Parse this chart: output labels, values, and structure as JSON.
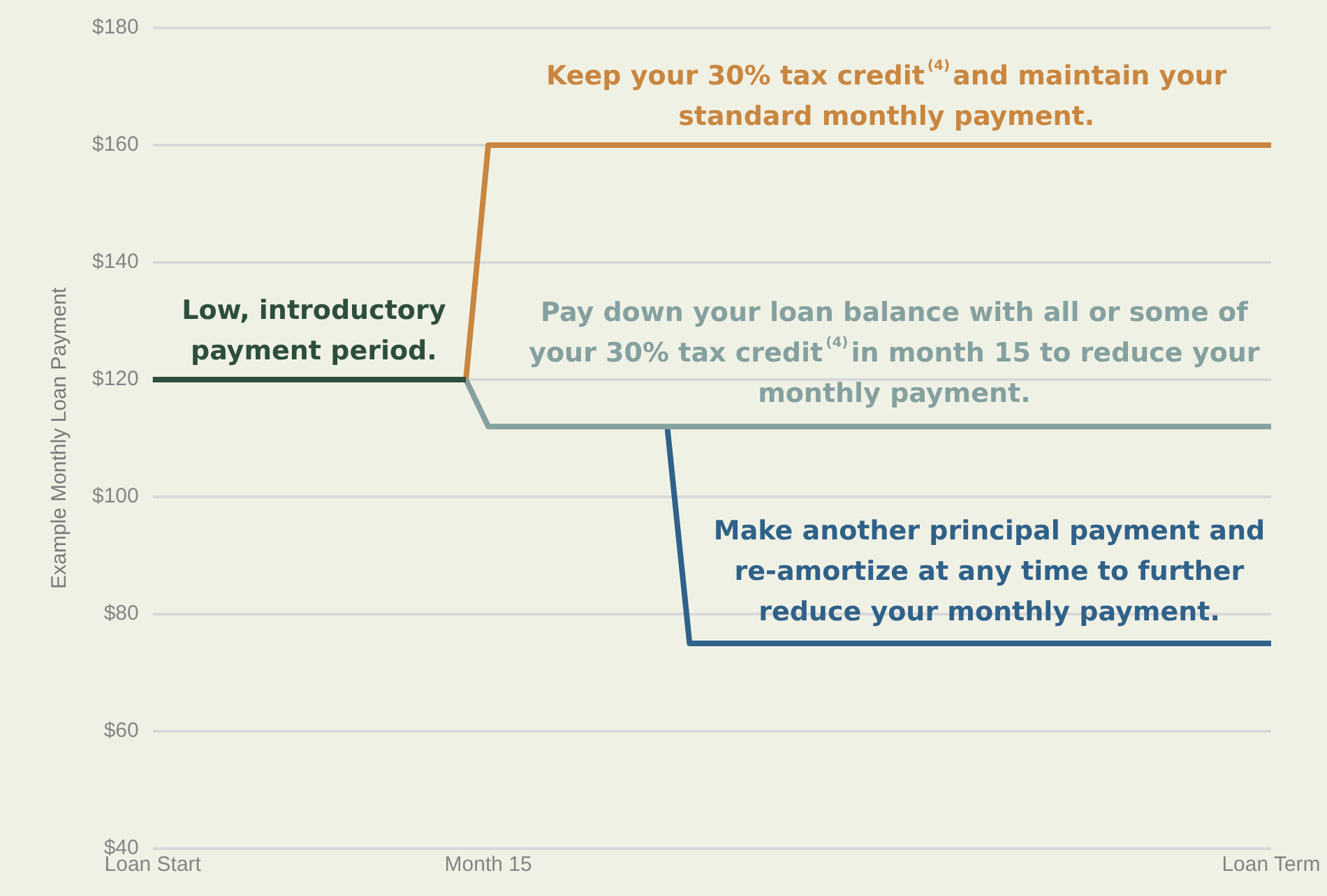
{
  "chart_data": {
    "type": "line",
    "ylabel": "Example Monthly Loan Payment",
    "categories": [
      "Loan Start",
      null,
      null,
      null,
      null,
      null,
      null,
      null,
      null,
      null,
      null,
      null,
      null,
      null,
      null,
      "Month 15",
      null,
      null,
      null,
      null,
      null,
      null,
      null,
      null,
      null,
      null,
      null,
      null,
      null,
      null,
      null,
      null,
      null,
      null,
      null,
      null,
      null,
      null,
      null,
      null,
      null,
      null,
      null,
      null,
      null,
      null,
      null,
      null,
      null,
      null,
      "Loan Term"
    ],
    "ylim": [
      40,
      180
    ],
    "yticks": [
      {
        "value": 40,
        "label": "$40"
      },
      {
        "value": 60,
        "label": "$60"
      },
      {
        "value": 80,
        "label": "$80"
      },
      {
        "value": 100,
        "label": "$100"
      },
      {
        "value": 120,
        "label": "$120"
      },
      {
        "value": 140,
        "label": "$140"
      },
      {
        "value": 160,
        "label": "$160"
      },
      {
        "value": 180,
        "label": "$180"
      }
    ],
    "grid": "y",
    "series": [
      {
        "color": "#2d4e3d",
        "values": [
          120,
          null,
          null,
          null,
          null,
          null,
          null,
          null,
          null,
          null,
          null,
          null,
          null,
          null,
          120,
          null,
          null,
          null,
          null,
          null,
          null,
          null,
          null,
          null,
          null,
          null,
          null,
          null,
          null,
          null,
          null,
          null,
          null,
          null,
          null,
          null,
          null,
          null,
          null,
          null,
          null,
          null,
          null,
          null,
          null,
          null,
          null,
          null,
          null,
          null,
          null
        ]
      },
      {
        "color": "#c9863f",
        "values": [
          null,
          null,
          null,
          null,
          null,
          null,
          null,
          null,
          null,
          null,
          null,
          null,
          null,
          null,
          120,
          160,
          null,
          null,
          null,
          null,
          null,
          null,
          null,
          null,
          null,
          null,
          null,
          null,
          null,
          null,
          null,
          null,
          null,
          null,
          null,
          null,
          null,
          null,
          null,
          null,
          null,
          null,
          null,
          null,
          null,
          null,
          null,
          null,
          null,
          null,
          160
        ]
      },
      {
        "color": "#84a09f",
        "values": [
          null,
          null,
          null,
          null,
          null,
          null,
          null,
          null,
          null,
          null,
          null,
          null,
          null,
          null,
          120,
          112,
          null,
          null,
          null,
          null,
          null,
          null,
          null,
          null,
          null,
          null,
          null,
          null,
          null,
          null,
          null,
          null,
          null,
          null,
          null,
          null,
          null,
          null,
          null,
          null,
          null,
          null,
          null,
          null,
          null,
          null,
          null,
          null,
          null,
          null,
          112
        ]
      },
      {
        "color": "#2f6189",
        "values": [
          null,
          null,
          null,
          null,
          null,
          null,
          null,
          null,
          null,
          null,
          null,
          null,
          null,
          null,
          null,
          null,
          null,
          null,
          null,
          null,
          null,
          null,
          null,
          112,
          75,
          null,
          null,
          null,
          null,
          null,
          null,
          null,
          null,
          null,
          null,
          null,
          null,
          null,
          null,
          null,
          null,
          null,
          null,
          null,
          null,
          null,
          null,
          null,
          null,
          null,
          75
        ]
      }
    ],
    "annotations": [
      "Low, introductory\npayment period.",
      "Keep your 30% tax credit$^{(4)}$and maintain your\nstandard monthly payment.",
      "Pay down your loan balance with all or some of\nyour 30% tax credit$^{(4)}$in month 15 to reduce your\nmonthly payment.",
      "Make another principal payment and\nre-amortize at any time to further\nreduce your monthly payment."
    ]
  }
}
